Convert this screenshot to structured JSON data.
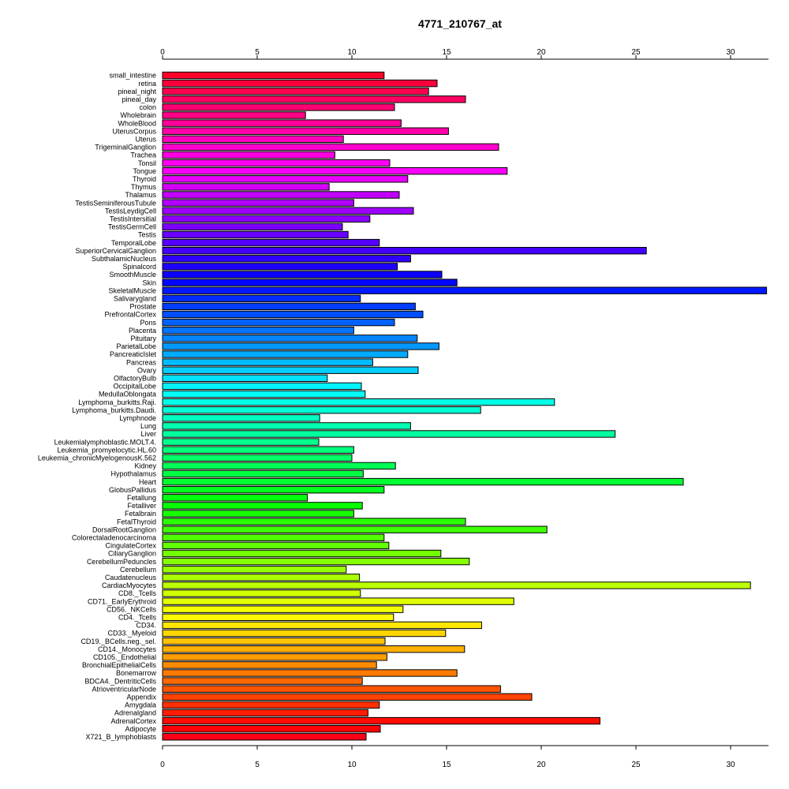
{
  "chart_data": {
    "type": "bar",
    "orientation": "horizontal",
    "title": "4771_210767_at",
    "xlabel": "",
    "ylabel": "",
    "xlim": [
      0,
      32
    ],
    "xticks": [
      0,
      5,
      10,
      15,
      20,
      25,
      30
    ],
    "grid": false,
    "legend": "none",
    "categories": [
      "small_intestine",
      "retina",
      "pineal_night",
      "pineal_day",
      "colon",
      "Wholebrain",
      "WholeBlood",
      "UterusCorpus",
      "Uterus",
      "TrigeminalGanglion",
      "Trachea",
      "Tonsil",
      "Tongue",
      "Thyroid",
      "Thymus",
      "Thalamus",
      "TestisSeminiferousTubule",
      "TestisLeydigCell",
      "TestisIntersitial",
      "TestisGermCell",
      "Testis",
      "TemporalLobe",
      "SuperiorCervicalGanglion",
      "SubthalamicNucleus",
      "Spinalcord",
      "SmoothMuscle",
      "Skin",
      "SkeletalMuscle",
      "Salivarygland",
      "Prostate",
      "PrefrontalCortex",
      "Pons",
      "Placenta",
      "Pituitary",
      "ParietalLobe",
      "PancreaticIslet",
      "Pancreas",
      "Ovary",
      "OlfactoryBulb",
      "OccipitalLobe",
      "MedullaOblongata",
      "Lymphoma_burkitts.Raji.",
      "Lymphoma_burkitts.Daudi.",
      "Lymphnode",
      "Lung",
      "Liver",
      "Leukemialymphoblastic.MOLT.4.",
      "Leukemia_promyelocytic.HL.60",
      "Leukemia_chronicMyelogenousK.562",
      "Kidney",
      "Hypothalamus",
      "Heart",
      "GlobusPallidus",
      "Fetallung",
      "Fetalliver",
      "Fetalbrain",
      "FetalThyroid",
      "DorsalRootGanglion",
      "Colorectaladenocarcinoma",
      "CingulateCortex",
      "CiliaryGanglion",
      "CerebellumPeduncles",
      "Cerebellum",
      "Caudatenucleus",
      "CardiacMyocytes",
      "CD8._Tcells",
      "CD71._EarlyErythroid",
      "CD56._NKCells",
      "CD4._Tcells",
      "CD34.",
      "CD33._Myeloid",
      "CD19._BCells.neg._sel.",
      "CD14._Monocytes",
      "CD105._Endothelial",
      "BronchialEpithelialCells",
      "Bonemarrow",
      "BDCA4._DentriticCells",
      "AtrioventricularNode",
      "Appendix",
      "Amygdala",
      "Adrenalgland",
      "AdrenalCortex",
      "Adipocyte",
      "X721_B_lymphoblasts"
    ],
    "values": [
      11.7,
      14.5,
      14.05,
      16.0,
      12.25,
      7.55,
      12.6,
      15.1,
      9.55,
      17.75,
      9.1,
      12.0,
      18.2,
      12.95,
      8.8,
      12.5,
      10.1,
      13.25,
      10.95,
      9.5,
      9.8,
      11.45,
      25.55,
      13.1,
      12.4,
      14.75,
      15.55,
      31.9,
      10.45,
      13.35,
      13.75,
      12.25,
      10.1,
      13.45,
      14.6,
      12.95,
      11.1,
      13.5,
      8.7,
      10.5,
      10.7,
      20.7,
      16.8,
      8.3,
      13.1,
      23.9,
      8.25,
      10.1,
      10.0,
      12.3,
      10.6,
      27.5,
      11.7,
      7.65,
      10.55,
      10.1,
      16.0,
      20.3,
      11.7,
      11.95,
      14.7,
      16.2,
      9.7,
      10.4,
      31.05,
      10.45,
      18.55,
      12.7,
      12.2,
      16.85,
      14.95,
      11.75,
      15.95,
      11.85,
      11.3,
      15.55,
      10.55,
      17.85,
      19.5,
      11.45,
      10.85,
      23.1,
      11.5,
      10.75
    ]
  }
}
